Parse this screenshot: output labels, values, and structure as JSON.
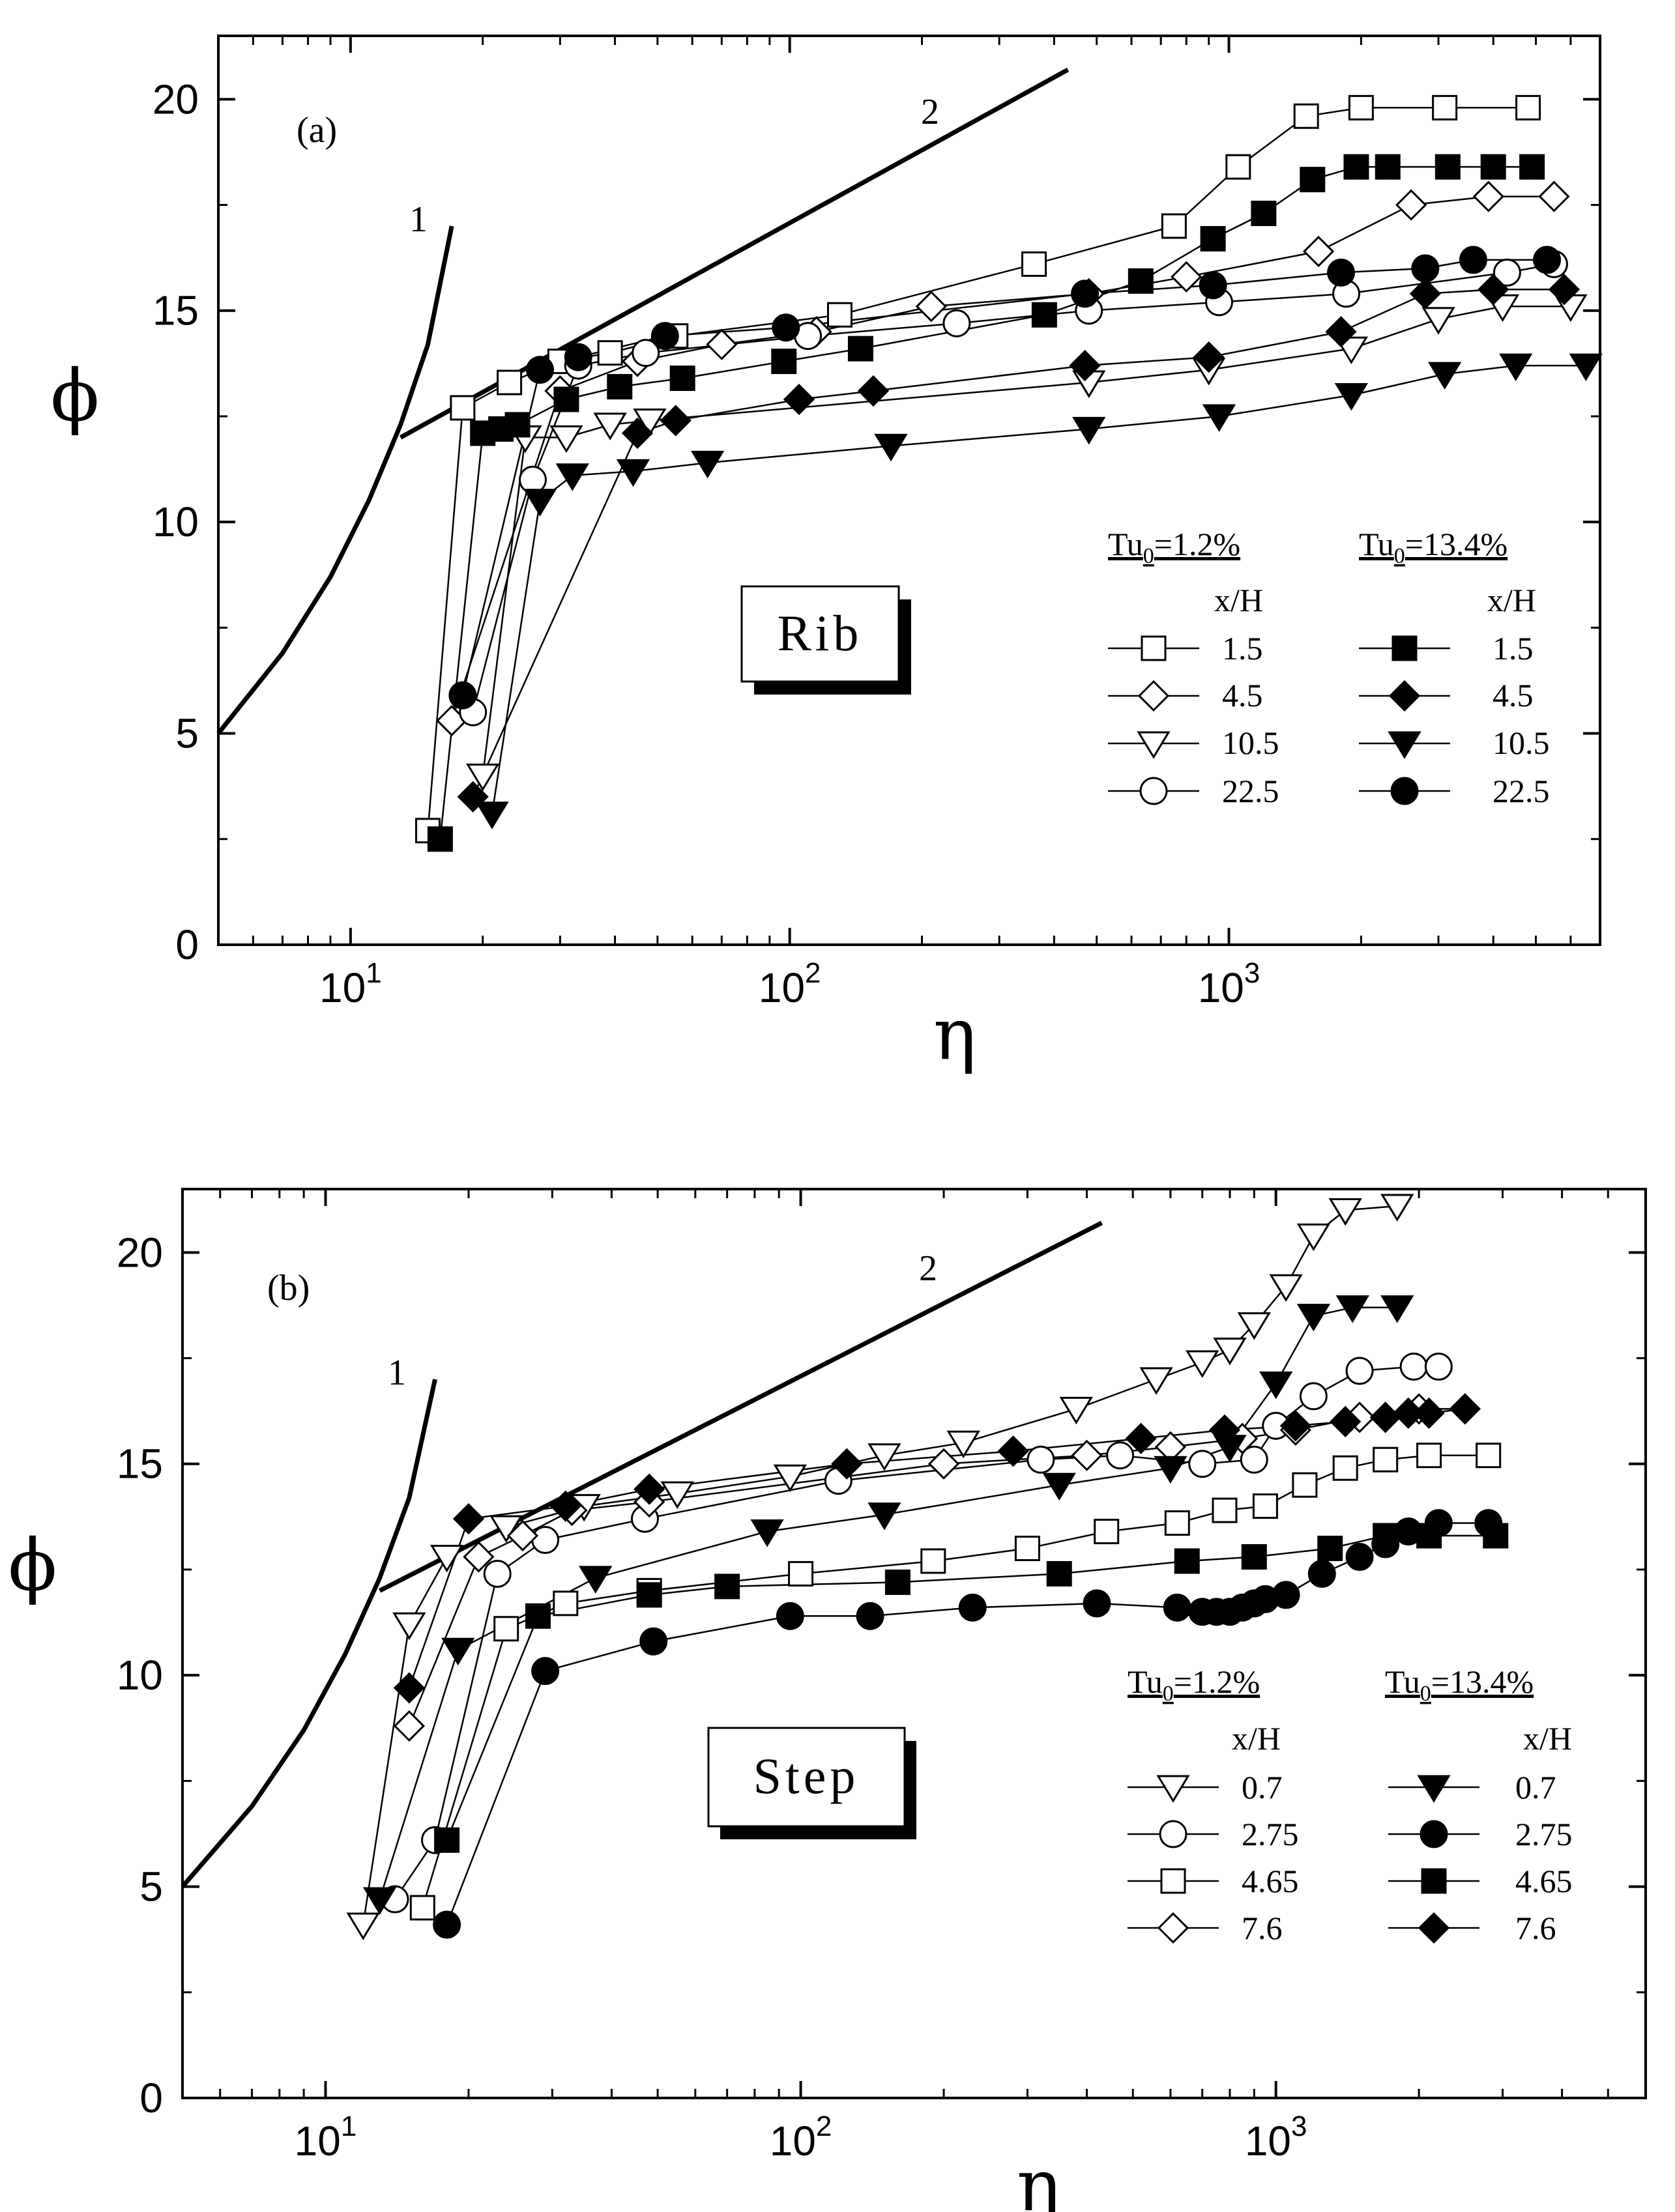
{
  "chart_data": [
    {
      "type": "line",
      "panel_label": "(a)",
      "box_label": "Rib",
      "xscale": "log",
      "xlim": [
        5,
        7000
      ],
      "ylim": [
        0,
        21.5
      ],
      "xlabel": "η",
      "ylabel": "ϕ",
      "x_ticks": [
        {
          "value": 10,
          "base": "10",
          "exp": "1"
        },
        {
          "value": 100,
          "base": "10",
          "exp": "2"
        },
        {
          "value": 1000,
          "base": "10",
          "exp": "3"
        }
      ],
      "y_ticks": [
        {
          "value": 0,
          "label": "0"
        },
        {
          "value": 5,
          "label": "5"
        },
        {
          "value": 10,
          "label": "10"
        },
        {
          "value": 15,
          "label": "15"
        },
        {
          "value": 20,
          "label": "20"
        }
      ],
      "reference_lines": [
        {
          "label": "1",
          "x": [
            5,
            7,
            9,
            11,
            13,
            15,
            17
          ],
          "y": [
            5.0,
            6.9,
            8.7,
            10.5,
            12.3,
            14.2,
            17.0
          ]
        },
        {
          "label": "2",
          "x": [
            13,
            430
          ],
          "y": [
            12.0,
            20.7
          ]
        }
      ],
      "legend": {
        "col1_title_base": "Tu",
        "col1_title_sub": "0",
        "col1_title_rest": "=1.2%",
        "col2_title_base": "Tu",
        "col2_title_sub": "0",
        "col2_title_rest": "=13.4%",
        "param_label_1": "x/H",
        "param_label_2": "x/H",
        "col1_values": [
          "1.5",
          "4.5",
          "10.5",
          "22.5"
        ],
        "col2_values": [
          "1.5",
          "4.5",
          "10.5",
          "22.5"
        ]
      },
      "series": [
        {
          "name": "Tu0=1.2%, x/H=1.5",
          "marker": "square",
          "filled": false,
          "x": [
            15,
            18,
            23,
            30,
            39,
            55,
            130,
            360,
            750,
            1050,
            1500,
            2000,
            3100,
            4800
          ],
          "y": [
            2.7,
            12.7,
            13.3,
            13.8,
            14.0,
            14.4,
            14.9,
            16.1,
            17.0,
            18.4,
            19.6,
            19.8,
            19.8,
            19.8
          ]
        },
        {
          "name": "Tu0=1.2%, x/H=4.5",
          "marker": "diamond",
          "filled": false,
          "x": [
            17,
            30,
            45,
            70,
            115,
            210,
            480,
            800,
            1600,
            2600,
            3900,
            5500
          ],
          "y": [
            5.3,
            13.1,
            13.8,
            14.2,
            14.5,
            15.1,
            15.4,
            15.8,
            16.4,
            17.5,
            17.7,
            17.7
          ],
          "hollow_ring": true
        },
        {
          "name": "Tu0=1.2%, x/H=10.5",
          "marker": "triangle-down",
          "filled": false,
          "x": [
            20,
            25,
            31,
            39,
            48,
            480,
            900,
            1900,
            3000,
            4200,
            6000
          ],
          "y": [
            4.0,
            12.0,
            12.0,
            12.3,
            12.4,
            13.3,
            13.6,
            14.1,
            14.8,
            15.1,
            15.1
          ]
        },
        {
          "name": "Tu0=1.2%, x/H=22.5",
          "marker": "circle",
          "filled": false,
          "x": [
            19,
            26,
            33,
            47,
            110,
            240,
            480,
            950,
            1850,
            4300,
            5500
          ],
          "y": [
            5.5,
            11.0,
            13.7,
            14.0,
            14.4,
            14.7,
            15.0,
            15.2,
            15.4,
            15.9,
            16.1
          ]
        },
        {
          "name": "Tu0=13.4%, x/H=1.5",
          "marker": "square",
          "filled": true,
          "x": [
            16,
            20,
            22,
            24,
            31,
            41,
            57,
            97,
            145,
            380,
            630,
            920,
            1200,
            1550,
            1950,
            2300,
            3150,
            4000,
            4900
          ],
          "y": [
            2.5,
            12.1,
            12.2,
            12.3,
            12.9,
            13.2,
            13.4,
            13.8,
            14.1,
            14.9,
            15.7,
            16.7,
            17.3,
            18.1,
            18.4,
            18.4,
            18.4,
            18.4,
            18.4
          ]
        },
        {
          "name": "Tu0=13.4%, x/H=4.5",
          "marker": "diamond",
          "filled": true,
          "x": [
            19,
            45,
            55,
            105,
            155,
            470,
            900,
            1800,
            2800,
            4000,
            5800
          ],
          "y": [
            3.5,
            12.1,
            12.4,
            12.9,
            13.1,
            13.7,
            13.9,
            14.5,
            15.4,
            15.5,
            15.5
          ]
        },
        {
          "name": "Tu0=13.4%, x/H=10.5",
          "marker": "triangle-down",
          "filled": true,
          "x": [
            21,
            27,
            32,
            44,
            65,
            170,
            480,
            950,
            1900,
            3100,
            4500,
            6500
          ],
          "y": [
            3.1,
            10.5,
            11.1,
            11.2,
            11.4,
            11.8,
            12.2,
            12.5,
            13.0,
            13.5,
            13.7,
            13.7
          ]
        },
        {
          "name": "Tu0=13.4%, x/H=22.5",
          "marker": "circle",
          "filled": true,
          "x": [
            18,
            27,
            33,
            52,
            98,
            470,
            920,
            1800,
            2800,
            3600,
            5300
          ],
          "y": [
            5.9,
            13.6,
            13.9,
            14.4,
            14.6,
            15.4,
            15.6,
            15.9,
            16.0,
            16.2,
            16.2
          ]
        }
      ]
    },
    {
      "type": "line",
      "panel_label": "(b)",
      "box_label": "Step",
      "xscale": "log",
      "xlim": [
        5,
        6000
      ],
      "ylim": [
        0,
        21.5
      ],
      "xlabel": "η",
      "ylabel": "ϕ",
      "x_ticks": [
        {
          "value": 10,
          "base": "10",
          "exp": "1"
        },
        {
          "value": 100,
          "base": "10",
          "exp": "2"
        },
        {
          "value": 1000,
          "base": "10",
          "exp": "3"
        }
      ],
      "y_ticks": [
        {
          "value": 0,
          "label": "0"
        },
        {
          "value": 5,
          "label": "5"
        },
        {
          "value": 10,
          "label": "10"
        },
        {
          "value": 15,
          "label": "15"
        },
        {
          "value": 20,
          "label": "20"
        }
      ],
      "reference_lines": [
        {
          "label": "1",
          "x": [
            5,
            7,
            9,
            11,
            13,
            15,
            17
          ],
          "y": [
            5.0,
            6.9,
            8.7,
            10.5,
            12.3,
            14.2,
            17.0
          ]
        },
        {
          "label": "2",
          "x": [
            13,
            430
          ],
          "y": [
            12.0,
            20.7
          ]
        }
      ],
      "legend": {
        "col1_title_base": "Tu",
        "col1_title_sub": "0",
        "col1_title_rest": "=1.2%",
        "col2_title_base": "Tu",
        "col2_title_sub": "0",
        "col2_title_rest": "=13.4%",
        "param_label_1": "x/H",
        "param_label_2": "x/H",
        "col1_values": [
          "0.7",
          "2.75",
          "4.65",
          "7.6"
        ],
        "col2_values": [
          "0.7",
          "2.75",
          "4.65",
          "7.6"
        ]
      },
      "series": [
        {
          "name": "Tu0=1.2%, x/H=0.7",
          "marker": "triangle-down",
          "filled": false,
          "x": [
            12,
            15,
            18,
            24,
            35,
            55,
            95,
            150,
            220,
            380,
            560,
            700,
            800,
            900,
            1050,
            1200,
            1400,
            1800
          ],
          "y": [
            4.1,
            11.2,
            12.8,
            13.5,
            14.0,
            14.3,
            14.7,
            15.2,
            15.5,
            16.3,
            17.0,
            17.4,
            17.7,
            18.3,
            19.2,
            20.4,
            21.0,
            21.1
          ]
        },
        {
          "name": "Tu0=1.2%, x/H=2.75",
          "marker": "circle",
          "filled": false,
          "x": [
            14,
            17,
            23,
            29,
            47,
            120,
            320,
            470,
            700,
            900,
            1000,
            1200,
            1500,
            1950,
            2200
          ],
          "y": [
            4.7,
            6.1,
            12.4,
            13.2,
            13.7,
            14.6,
            15.1,
            15.2,
            15.0,
            15.1,
            15.9,
            16.6,
            17.2,
            17.3,
            17.3
          ]
        },
        {
          "name": "Tu0=1.2%, x/H=4.65",
          "marker": "square",
          "filled": false,
          "x": [
            16,
            24,
            32,
            48,
            100,
            190,
            300,
            440,
            620,
            780,
            950,
            1150,
            1400,
            1700,
            2100,
            2800
          ],
          "y": [
            4.5,
            11.1,
            11.7,
            12.0,
            12.4,
            12.7,
            13.0,
            13.4,
            13.6,
            13.9,
            14.0,
            14.5,
            14.9,
            15.1,
            15.2,
            15.2
          ]
        },
        {
          "name": "Tu0=1.2%, x/H=7.6",
          "marker": "diamond",
          "filled": false,
          "x": [
            15,
            21,
            26,
            33,
            48,
            200,
            400,
            600,
            850,
            1100,
            1500,
            2000,
            2500
          ],
          "y": [
            8.8,
            12.8,
            13.3,
            13.9,
            14.1,
            15.0,
            15.2,
            15.4,
            15.6,
            15.8,
            16.1,
            16.3,
            16.3
          ]
        },
        {
          "name": "Tu0=13.4%, x/H=0.7",
          "marker": "triangle-down",
          "filled": true,
          "x": [
            13,
            19,
            37,
            85,
            150,
            350,
            600,
            800,
            1000,
            1200,
            1450,
            1800
          ],
          "y": [
            4.7,
            10.6,
            12.3,
            13.4,
            13.8,
            14.5,
            14.9,
            15.4,
            16.9,
            18.5,
            18.7,
            18.7
          ]
        },
        {
          "name": "Tu0=13.4%, x/H=2.75",
          "marker": "circle",
          "filled": true,
          "x": [
            18,
            29,
            49,
            95,
            140,
            230,
            420,
            620,
            700,
            750,
            800,
            850,
            900,
            950,
            1050,
            1250,
            1500,
            1700,
            1900,
            2200,
            2800
          ],
          "y": [
            4.1,
            10.1,
            10.8,
            11.4,
            11.4,
            11.6,
            11.7,
            11.6,
            11.5,
            11.5,
            11.5,
            11.6,
            11.7,
            11.8,
            11.9,
            12.4,
            12.8,
            13.1,
            13.4,
            13.6,
            13.6
          ]
        },
        {
          "name": "Tu0=13.4%, x/H=4.65",
          "marker": "square",
          "filled": true,
          "x": [
            18,
            28,
            48,
            70,
            160,
            350,
            650,
            900,
            1300,
            1700,
            2100,
            2900
          ],
          "y": [
            6.1,
            11.4,
            11.9,
            12.1,
            12.2,
            12.4,
            12.7,
            12.8,
            13.0,
            13.3,
            13.3,
            13.3
          ]
        },
        {
          "name": "Tu0=13.4%, x/H=7.6",
          "marker": "diamond",
          "filled": true,
          "x": [
            15,
            20,
            32,
            48,
            125,
            280,
            520,
            780,
            1100,
            1400,
            1700,
            1900,
            2100,
            2500
          ],
          "y": [
            9.7,
            13.7,
            14.0,
            14.4,
            15.0,
            15.3,
            15.6,
            15.8,
            15.9,
            16.0,
            16.1,
            16.2,
            16.2,
            16.3
          ]
        }
      ]
    }
  ]
}
